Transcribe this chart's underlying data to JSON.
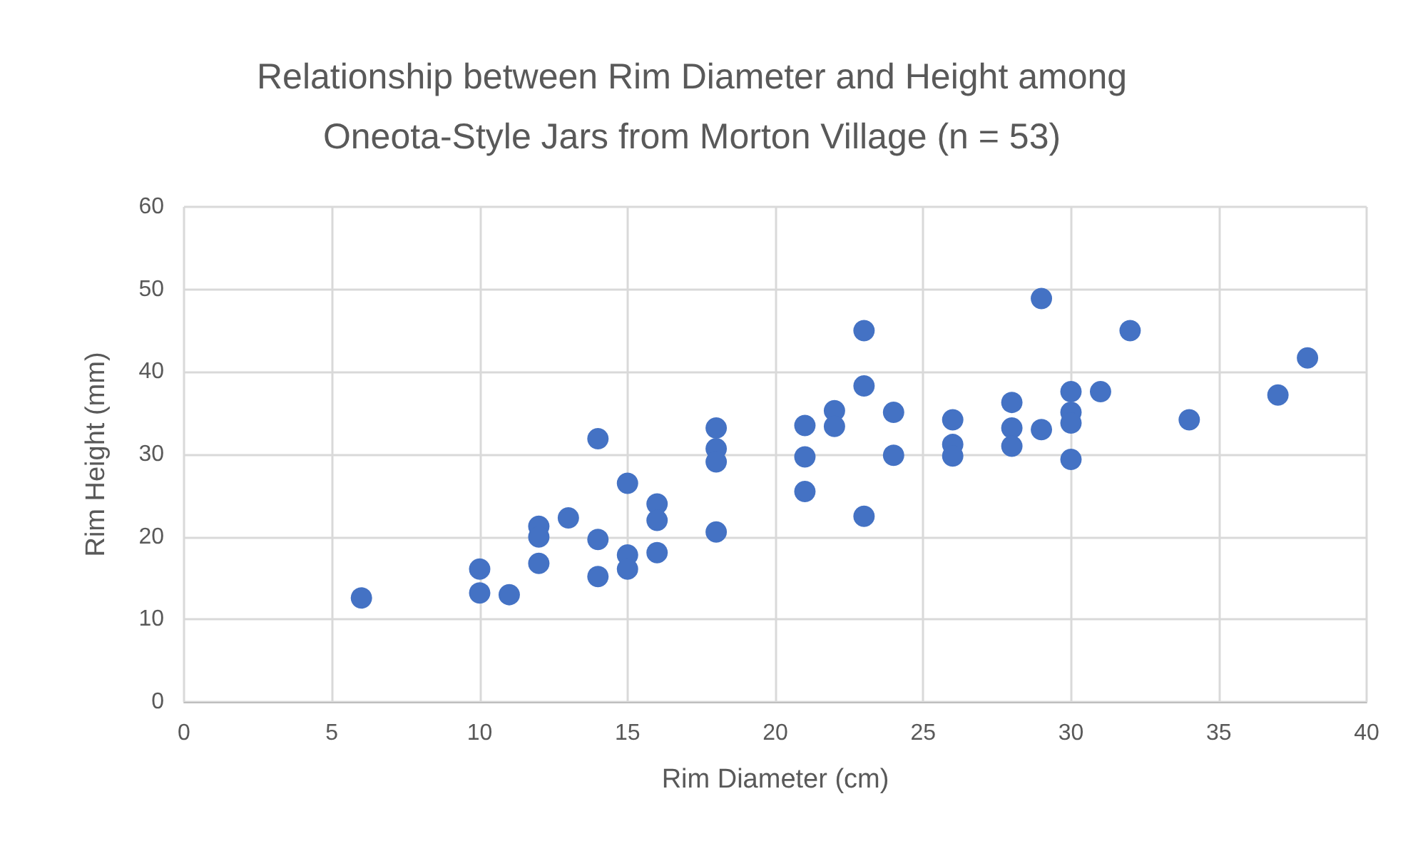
{
  "chart_data": {
    "type": "scatter",
    "title": "Relationship between Rim Diameter and Height among\nOneota-Style Jars from Morton Village (n = 53)",
    "xlabel": "Rim Diameter (cm)",
    "ylabel": "Rim Height (mm)",
    "x": [
      6,
      10,
      10,
      11,
      12,
      12,
      12,
      13,
      14,
      14,
      14,
      15,
      15,
      15,
      16,
      16,
      16,
      18,
      18,
      18,
      18,
      21,
      21,
      21,
      22,
      22,
      23,
      23,
      23,
      24,
      24,
      26,
      26,
      26,
      28,
      28,
      28,
      29,
      29,
      30,
      30,
      30,
      30,
      31,
      32,
      34,
      37,
      38
    ],
    "values": [
      12.6,
      16.1,
      13.2,
      13.0,
      21.3,
      20.0,
      16.8,
      22.3,
      31.9,
      19.7,
      15.2,
      26.5,
      17.8,
      16.1,
      24.0,
      22.0,
      18.1,
      33.2,
      30.7,
      29.1,
      20.6,
      33.5,
      29.7,
      25.5,
      35.3,
      33.4,
      45.0,
      38.3,
      22.5,
      35.1,
      29.9,
      34.2,
      31.2,
      29.8,
      36.3,
      33.2,
      31.0,
      48.9,
      33.0,
      37.6,
      35.1,
      33.8,
      29.4,
      37.6,
      45.0,
      34.2,
      37.2,
      41.7
    ],
    "color": "#4472c4",
    "marker": "circle",
    "grid": true,
    "xlim": [
      0,
      40
    ],
    "xticks": [
      0,
      5,
      10,
      15,
      20,
      25,
      30,
      35,
      40
    ],
    "ylim": [
      0,
      60
    ],
    "yticks": [
      0,
      10,
      20,
      30,
      40,
      50,
      60
    ]
  }
}
